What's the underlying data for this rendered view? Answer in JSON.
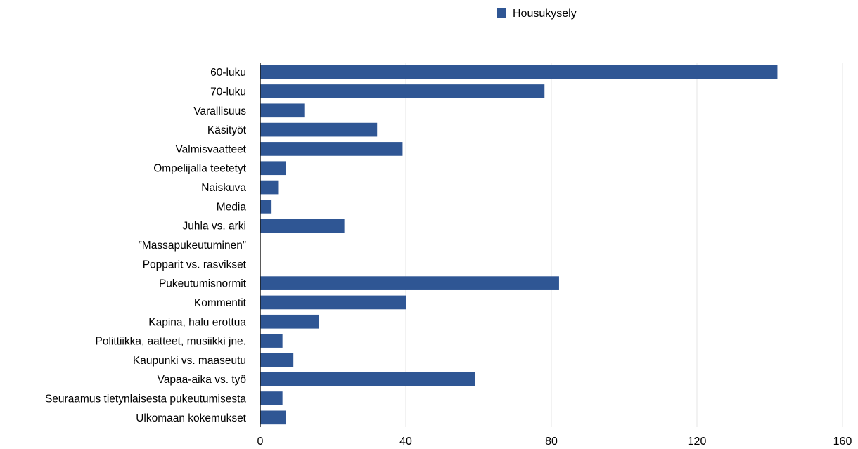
{
  "chart_data": {
    "type": "bar",
    "orientation": "horizontal",
    "categories": [
      "60-luku",
      "70-luku",
      "Varallisuus",
      "Käsityöt",
      "Valmisvaatteet",
      "Ompelijalla teetetyt",
      "Naiskuva",
      "Media",
      "Juhla vs. arki",
      "”Massapukeutuminen”",
      "Popparit vs. rasvikset",
      "Pukeutumisnormit",
      "Kommentit",
      "Kapina, halu erottua",
      "Polittiikka, aatteet, musiikki jne.",
      "Kaupunki vs. maaseutu",
      "Vapaa-aika vs. työ",
      "Seuraamus tietynlaisesta pukeutumisesta",
      "Ulkomaan kokemukset"
    ],
    "series": [
      {
        "name": "Housukysely",
        "color": "#2f5694",
        "values": [
          142,
          78,
          12,
          32,
          39,
          7,
          5,
          3,
          23,
          0,
          0,
          82,
          40,
          16,
          6,
          9,
          59,
          6,
          7
        ]
      }
    ],
    "x_ticks": [
      "0",
      "40",
      "80",
      "120",
      "160"
    ],
    "xlim": [
      0,
      160
    ],
    "grid": true,
    "legend_position": "top-center",
    "title": "",
    "xlabel": "",
    "ylabel": ""
  }
}
